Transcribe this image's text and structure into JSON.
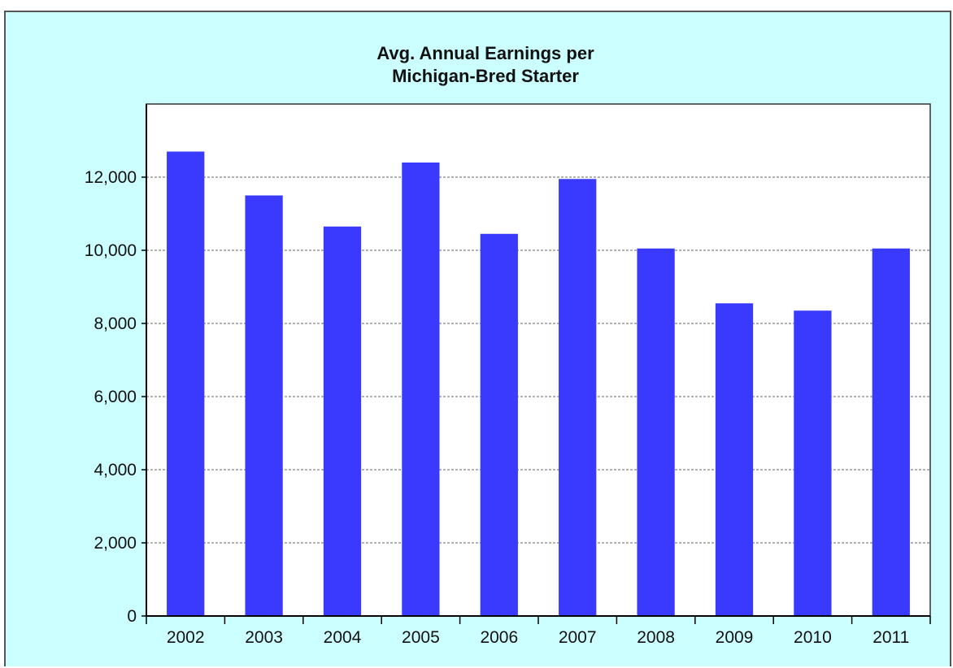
{
  "chart_data": {
    "type": "bar",
    "title_lines": [
      "Avg. Annual Earnings per",
      "Michigan-Bred Starter"
    ],
    "categories": [
      "2002",
      "2003",
      "2004",
      "2005",
      "2006",
      "2007",
      "2008",
      "2009",
      "2010",
      "2011"
    ],
    "values": [
      12700,
      11500,
      10650,
      12400,
      10450,
      11950,
      10050,
      8550,
      8350,
      10050
    ],
    "ylim": [
      0,
      14000
    ],
    "yticks": [
      0,
      2000,
      4000,
      6000,
      8000,
      10000,
      12000
    ],
    "ytick_labels": [
      "0",
      "2,000",
      "4,000",
      "6,000",
      "8,000",
      "10,000",
      "12,000"
    ],
    "grid": true,
    "legend": "none",
    "colors": {
      "bar": "#3a3aff",
      "chart_background": "#ccffff",
      "plot_background": "#ffffff",
      "gridline": "#666666"
    }
  }
}
